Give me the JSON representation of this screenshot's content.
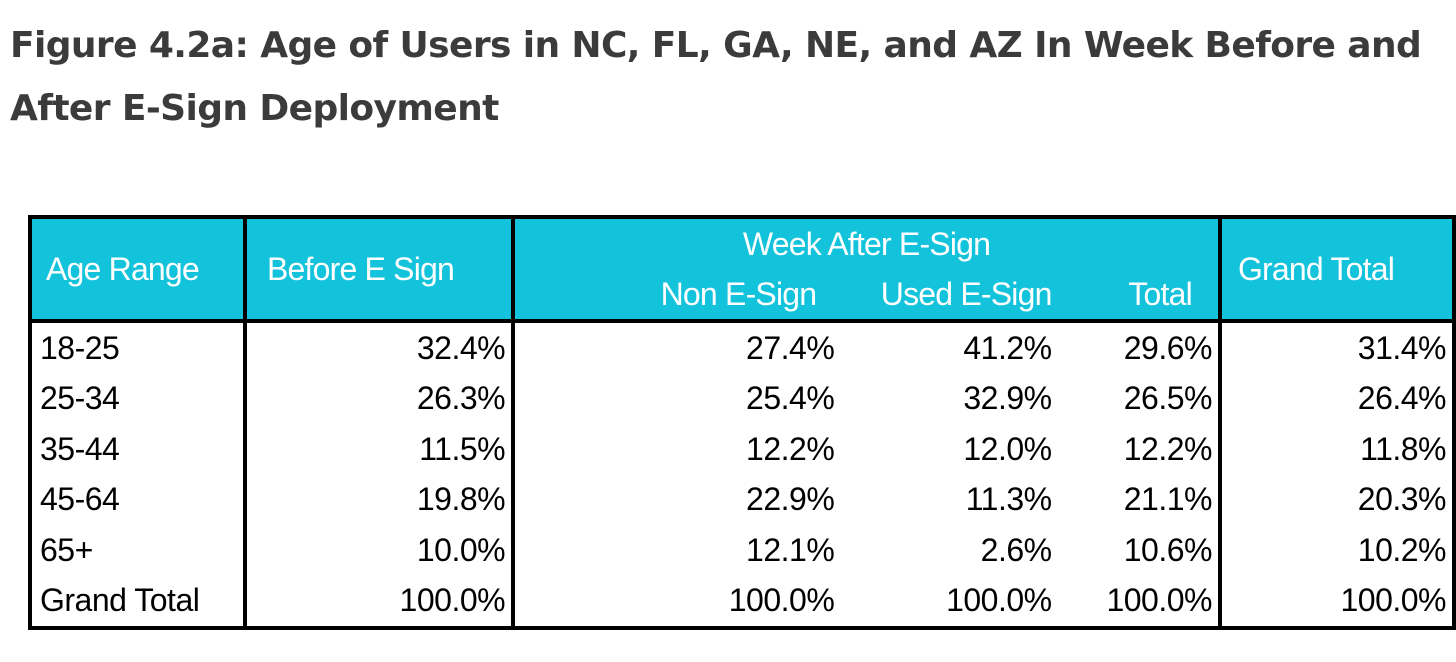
{
  "title": "Figure 4.2a: Age of Users in NC, FL, GA, NE, and AZ In Week Before and After E-Sign Deployment",
  "colors": {
    "header_bg": "#13c3dc",
    "header_text": "#ffffff",
    "title_text": "#3b3b3b",
    "border": "#000000"
  },
  "chart_data": {
    "type": "table",
    "title": "Figure 4.2a: Age of Users in NC, FL, GA, NE, and AZ In Week Before and After E-Sign Deployment",
    "group_header": "Week After E-Sign",
    "columns": [
      "Age Range",
      "Before E Sign",
      "Non E-Sign",
      "Used E-Sign",
      "Total",
      "Grand Total"
    ],
    "rows": [
      [
        "18-25",
        "32.4%",
        "27.4%",
        "41.2%",
        "29.6%",
        "31.4%"
      ],
      [
        "25-34",
        "26.3%",
        "25.4%",
        "32.9%",
        "26.5%",
        "26.4%"
      ],
      [
        "35-44",
        "11.5%",
        "12.2%",
        "12.0%",
        "12.2%",
        "11.8%"
      ],
      [
        "45-64",
        "19.8%",
        "22.9%",
        "11.3%",
        "21.1%",
        "20.3%"
      ],
      [
        "65+",
        "10.0%",
        "12.1%",
        "2.6%",
        "10.6%",
        "10.2%"
      ],
      [
        "Grand Total",
        "100.0%",
        "100.0%",
        "100.0%",
        "100.0%",
        "100.0%"
      ]
    ]
  }
}
